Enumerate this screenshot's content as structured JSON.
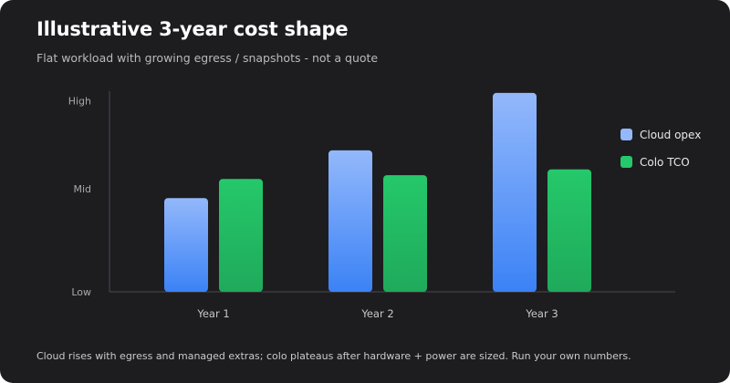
{
  "card": {
    "title": "Illustrative 3-year cost shape",
    "subtitle": "Flat workload with growing egress / snapshots - not a quote",
    "footnote": "Cloud rises with egress and managed extras; colo plateaus after hardware + power are sized. Run your own numbers."
  },
  "chart_data": {
    "type": "bar",
    "categories": [
      "Year 1",
      "Year 2",
      "Year 3"
    ],
    "series": [
      {
        "name": "Cloud opex",
        "values": [
          0.49,
          0.74,
          1.04
        ],
        "color_top": "#93b8fb",
        "color_bottom": "#3b82f6"
      },
      {
        "name": "Colo TCO",
        "values": [
          0.59,
          0.61,
          0.64
        ],
        "color_top": "#25c86a",
        "color_bottom": "#1faa5b"
      }
    ],
    "ylim": [
      0,
      1.03
    ],
    "yticks": [
      {
        "label": "Low",
        "value": 0
      },
      {
        "label": "Mid",
        "value": 0.54
      },
      {
        "label": "High",
        "value": 1.0
      }
    ],
    "legend_position": "right",
    "grid": false,
    "axis_color": "#4a4a50"
  }
}
